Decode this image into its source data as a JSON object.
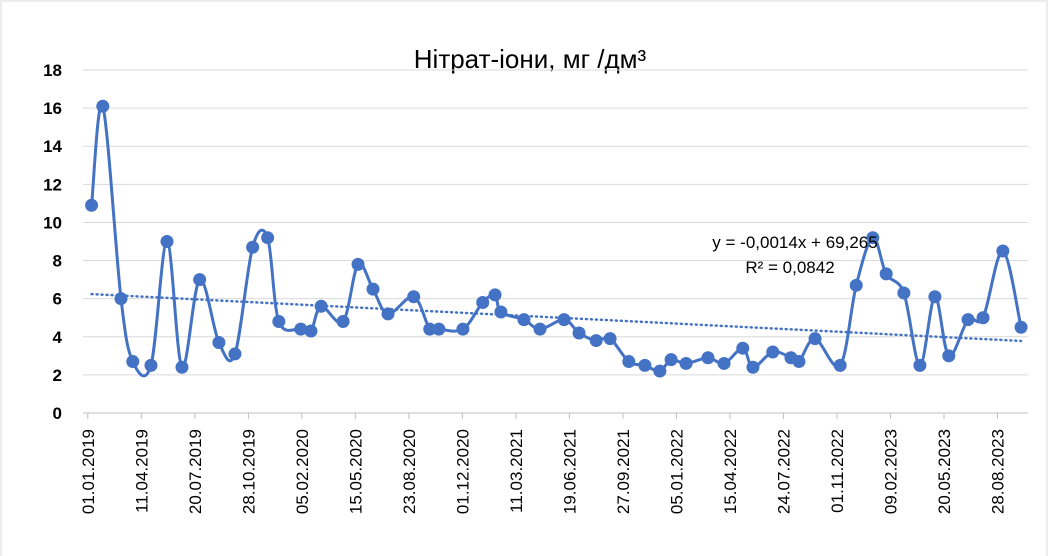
{
  "chart_data": {
    "type": "line",
    "title": "Нітрат-іони, мг /дм³",
    "x": [
      "08.01.2019",
      "29.01.2019",
      "04.03.2019",
      "26.03.2019",
      "29.04.2019",
      "29.05.2019",
      "26.06.2019",
      "29.07.2019",
      "03.09.2019",
      "03.10.2019",
      "05.11.2019",
      "03.12.2019",
      "24.12.2019",
      "03.02.2020",
      "22.02.2020",
      "12.03.2020",
      "22.04.2020",
      "20.05.2020",
      "17.06.2020",
      "15.07.2020",
      "01.09.2020",
      "01.10.2020",
      "18.10.2020",
      "02.12.2020",
      "08.01.2021",
      "31.01.2021",
      "11.02.2021",
      "26.03.2021",
      "25.04.2021",
      "09.06.2021",
      "07.07.2021",
      "08.08.2021",
      "03.09.2021",
      "08.10.2021",
      "07.11.2021",
      "05.12.2021",
      "26.12.2021",
      "23.01.2022",
      "05.03.2022",
      "04.04.2022",
      "09.05.2022",
      "28.05.2022",
      "04.07.2022",
      "07.08.2022",
      "22.08.2022",
      "21.09.2022",
      "07.11.2022",
      "07.12.2022",
      "07.01.2023",
      "01.02.2023",
      "06.03.2023",
      "05.04.2023",
      "03.05.2023",
      "29.05.2023",
      "04.07.2023",
      "01.08.2023",
      "07.09.2023",
      "11.10.2023"
    ],
    "series": [
      {
        "name": "Нітрат-іони",
        "color": "#4472c4",
        "values": [
          10.9,
          16.1,
          6.0,
          2.7,
          2.5,
          9.0,
          2.4,
          7.0,
          3.7,
          3.1,
          8.7,
          9.2,
          4.8,
          4.4,
          4.3,
          5.6,
          4.8,
          7.8,
          6.5,
          5.2,
          6.1,
          4.4,
          4.4,
          4.4,
          5.8,
          6.2,
          5.3,
          4.9,
          4.4,
          4.9,
          4.2,
          3.8,
          3.9,
          2.7,
          2.5,
          2.2,
          2.8,
          2.6,
          2.9,
          2.6,
          3.4,
          2.4,
          3.2,
          2.9,
          2.7,
          3.9,
          2.5,
          6.7,
          9.2,
          7.3,
          6.3,
          2.5,
          6.1,
          3.0,
          4.9,
          5.0,
          8.5,
          4.5
        ]
      }
    ],
    "trendline": {
      "x": [
        "08.01.2019",
        "11.10.2023"
      ],
      "values": [
        6.24,
        3.78
      ],
      "equation": "y = -0,0014x + 69,265",
      "r_squared": "R² = 0,0842"
    },
    "xlim": [
      "23.12.2018",
      "24.10.2023"
    ],
    "xticks": [
      "01.01.2019",
      "11.04.2019",
      "20.07.2019",
      "28.10.2019",
      "05.02.2020",
      "15.05.2020",
      "23.08.2020",
      "01.12.2020",
      "11.03.2021",
      "19.06.2021",
      "27.09.2021",
      "05.01.2022",
      "15.04.2022",
      "24.07.2022",
      "01.11.2022",
      "09.02.2023",
      "20.05.2023",
      "28.08.2023"
    ],
    "ylim": [
      0,
      18
    ],
    "yticks": [
      0,
      2,
      4,
      6,
      8,
      10,
      12,
      14,
      16,
      18
    ],
    "grid": true
  }
}
